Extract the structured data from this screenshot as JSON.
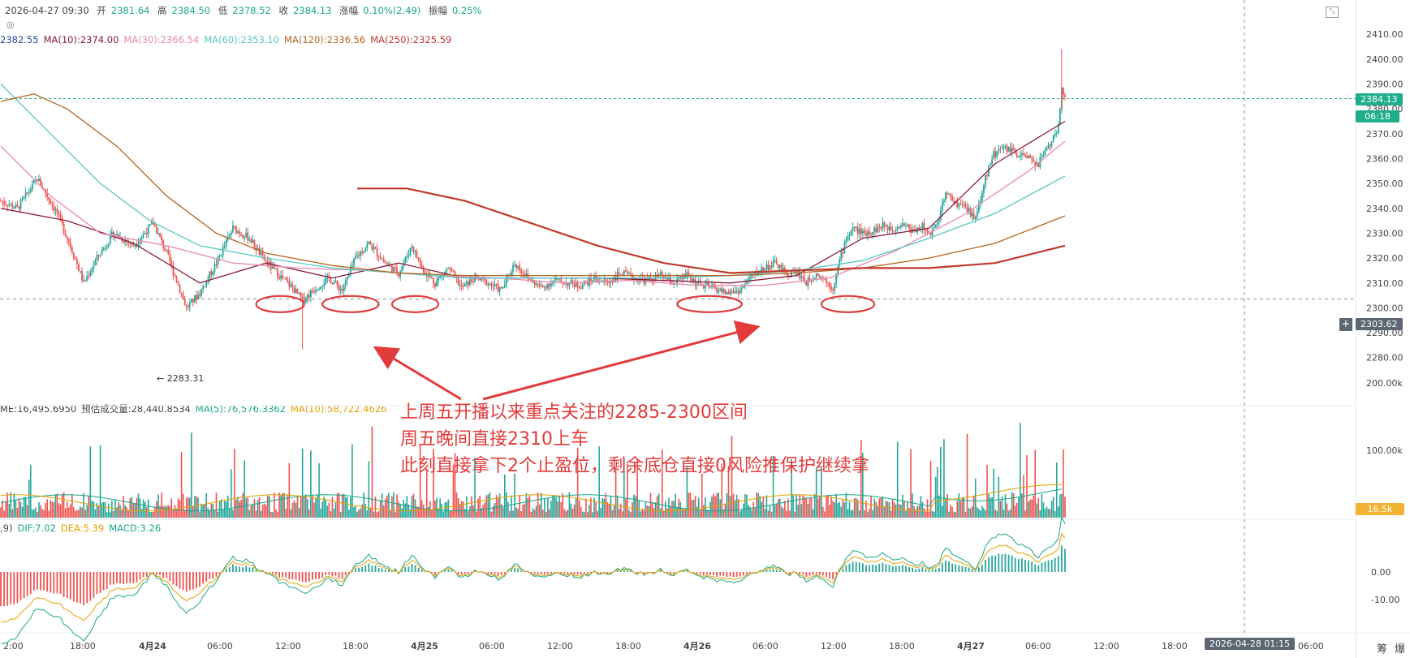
{
  "header": {
    "datetime": "2026-04-27 09:30",
    "open_label": "开",
    "open": "2381.64",
    "high_label": "高",
    "high": "2384.50",
    "low_label": "低",
    "low": "2378.52",
    "close_label": "收",
    "close": "2384.13",
    "change_label": "涨幅",
    "change": "0.10%(2.49)",
    "amp_label": "振幅",
    "amp": "0.25%"
  },
  "ma_legend": [
    {
      "text": "2382.55",
      "color": "#1f4e9c"
    },
    {
      "text": "MA(10):2374.00",
      "color": "#8b1a3a"
    },
    {
      "text": "MA(30):2366.54",
      "color": "#e88ab0"
    },
    {
      "text": "MA(60):2353.10",
      "color": "#55c7c2"
    },
    {
      "text": "MA(120):2336.56",
      "color": "#b5651d"
    },
    {
      "text": "MA(250):2325.59",
      "color": "#c0392b"
    }
  ],
  "volume_legend": [
    {
      "text": "ME:16,495.6950",
      "color": "#444444"
    },
    {
      "text": "预估成交量:28,440.8534",
      "color": "#444444"
    },
    {
      "text": "MA(5):76,576.3362",
      "color": "#17a889"
    },
    {
      "text": "MA(10):58,722.4626",
      "color": "#e6a100"
    }
  ],
  "macd_legend": [
    {
      "text": ",9)",
      "color": "#444444"
    },
    {
      "text": "DIF:7.02",
      "color": "#17a889"
    },
    {
      "text": "DEA:5.39",
      "color": "#e6a100"
    },
    {
      "text": "MACD:3.26",
      "color": "#17a889"
    }
  ],
  "price_tags": {
    "current_price": "2384.13",
    "countdown": "06:18",
    "crosshair_price": "2303.62",
    "volume_tag": "16.5k",
    "crosshair_time": "2026-04-28 01:15"
  },
  "low_marker": "← 2283.31",
  "annotation": {
    "line1": "上周五开播以来重点关注的2285-2300区间",
    "line2": "周五晚间直接2310上车",
    "line3": "此刻直接拿下2个止盈位，剩余底仓直接0风险推保护继续拿"
  },
  "bottom_right_labels": [
    "筹",
    "爆"
  ],
  "colors": {
    "up": "#26a69a",
    "down": "#ef5350",
    "annotation": "#e23b3b",
    "current_tag": "#1fae8b",
    "crosshair_tag": "#5d6673",
    "volume_tag": "#f2b233"
  },
  "chart_data": {
    "type": "candlestick",
    "price_axis": {
      "ticks": [
        "2410.00",
        "2400.00",
        "2390.00",
        "2380.00",
        "2370.00",
        "2360.00",
        "2350.00",
        "2340.00",
        "2330.00",
        "2320.00",
        "2310.00",
        "2300.00",
        "2290.00",
        "2280.00"
      ],
      "ylim": [
        2276,
        2413
      ]
    },
    "volume_axis": {
      "ticks": [
        "200.00k",
        "100.00k"
      ],
      "ylim": [
        0,
        260
      ]
    },
    "macd_axis": {
      "ticks": [
        "0.00",
        "-10.00"
      ],
      "ylim": [
        -14,
        13
      ]
    },
    "time_axis": {
      "ticks": [
        "2:00",
        "18:00",
        "4月24",
        "06:00",
        "12:00",
        "18:00",
        "4月25",
        "06:00",
        "12:00",
        "18:00",
        "4月26",
        "06:00",
        "12:00",
        "18:00",
        "4月27",
        "06:00",
        "12:00",
        "18:00",
        "06:00"
      ],
      "bold": [
        "4月24",
        "4月25",
        "4月26",
        "4月27"
      ]
    },
    "current_price": 2384.13,
    "crosshair_price": 2303.62,
    "close_path": [
      [
        0,
        2343
      ],
      [
        10,
        2340
      ],
      [
        22,
        2352
      ],
      [
        34,
        2338
      ],
      [
        42,
        2325
      ],
      [
        50,
        2310
      ],
      [
        58,
        2320
      ],
      [
        68,
        2330
      ],
      [
        80,
        2325
      ],
      [
        92,
        2334
      ],
      [
        100,
        2322
      ],
      [
        112,
        2300
      ],
      [
        120,
        2306
      ],
      [
        130,
        2318
      ],
      [
        140,
        2332
      ],
      [
        150,
        2328
      ],
      [
        158,
        2320
      ],
      [
        168,
        2313
      ],
      [
        176,
        2308
      ],
      [
        182,
        2303
      ],
      [
        190,
        2308
      ],
      [
        198,
        2312
      ],
      [
        206,
        2307
      ],
      [
        214,
        2320
      ],
      [
        222,
        2326
      ],
      [
        232,
        2318
      ],
      [
        240,
        2314
      ],
      [
        248,
        2325
      ],
      [
        254,
        2316
      ],
      [
        262,
        2310
      ],
      [
        270,
        2316
      ],
      [
        278,
        2308
      ],
      [
        286,
        2312
      ],
      [
        294,
        2310
      ],
      [
        302,
        2307
      ],
      [
        310,
        2318
      ],
      [
        318,
        2312
      ],
      [
        326,
        2308
      ],
      [
        334,
        2311
      ],
      [
        342,
        2310
      ],
      [
        350,
        2309
      ],
      [
        358,
        2312
      ],
      [
        366,
        2310
      ],
      [
        374,
        2314
      ],
      [
        382,
        2312
      ],
      [
        390,
        2311
      ],
      [
        398,
        2313
      ],
      [
        406,
        2310
      ],
      [
        414,
        2313
      ],
      [
        422,
        2309
      ],
      [
        430,
        2308
      ],
      [
        438,
        2306
      ],
      [
        446,
        2307
      ],
      [
        452,
        2312
      ],
      [
        460,
        2316
      ],
      [
        468,
        2318
      ],
      [
        474,
        2313
      ],
      [
        480,
        2315
      ],
      [
        486,
        2310
      ],
      [
        492,
        2314
      ],
      [
        496,
        2312
      ],
      [
        502,
        2308
      ],
      [
        506,
        2319
      ],
      [
        510,
        2328
      ],
      [
        514,
        2332
      ],
      [
        520,
        2330
      ],
      [
        526,
        2331
      ],
      [
        532,
        2333
      ],
      [
        538,
        2332
      ],
      [
        544,
        2334
      ],
      [
        550,
        2331
      ],
      [
        556,
        2333
      ],
      [
        560,
        2329
      ],
      [
        566,
        2336
      ],
      [
        570,
        2346
      ],
      [
        576,
        2342
      ],
      [
        582,
        2340
      ],
      [
        588,
        2336
      ],
      [
        594,
        2352
      ],
      [
        598,
        2361
      ],
      [
        604,
        2364
      ],
      [
        610,
        2363
      ],
      [
        614,
        2360
      ],
      [
        618,
        2362
      ],
      [
        622,
        2359
      ],
      [
        626,
        2358
      ],
      [
        630,
        2363
      ],
      [
        634,
        2367
      ],
      [
        638,
        2372
      ],
      [
        640,
        2390
      ],
      [
        642,
        2384
      ]
    ],
    "candle_count": 643,
    "annotated_low": 2283.31,
    "ma_series": [
      {
        "name": "MA(10)",
        "color": "#8b1a3a",
        "points": [
          [
            0,
            2340
          ],
          [
            40,
            2335
          ],
          [
            80,
            2326
          ],
          [
            120,
            2310
          ],
          [
            160,
            2318
          ],
          [
            200,
            2312
          ],
          [
            240,
            2318
          ],
          [
            280,
            2312
          ],
          [
            320,
            2312
          ],
          [
            360,
            2312
          ],
          [
            400,
            2311
          ],
          [
            440,
            2310
          ],
          [
            480,
            2313
          ],
          [
            520,
            2328
          ],
          [
            560,
            2332
          ],
          [
            600,
            2358
          ],
          [
            642,
            2375
          ]
        ]
      },
      {
        "name": "MA(30)",
        "color": "#e88ab0",
        "points": [
          [
            0,
            2365
          ],
          [
            30,
            2345
          ],
          [
            60,
            2330
          ],
          [
            100,
            2325
          ],
          [
            140,
            2318
          ],
          [
            180,
            2316
          ],
          [
            220,
            2315
          ],
          [
            260,
            2313
          ],
          [
            300,
            2312
          ],
          [
            340,
            2310
          ],
          [
            380,
            2311
          ],
          [
            420,
            2309
          ],
          [
            460,
            2309
          ],
          [
            500,
            2312
          ],
          [
            540,
            2323
          ],
          [
            580,
            2337
          ],
          [
            620,
            2355
          ],
          [
            642,
            2367
          ]
        ]
      },
      {
        "name": "MA(60)",
        "color": "#55c7c2",
        "points": [
          [
            0,
            2390
          ],
          [
            30,
            2370
          ],
          [
            60,
            2350
          ],
          [
            90,
            2335
          ],
          [
            120,
            2325
          ],
          [
            160,
            2320
          ],
          [
            200,
            2316
          ],
          [
            240,
            2314
          ],
          [
            280,
            2312
          ],
          [
            320,
            2312
          ],
          [
            360,
            2312
          ],
          [
            400,
            2312
          ],
          [
            440,
            2313
          ],
          [
            480,
            2315
          ],
          [
            520,
            2319
          ],
          [
            560,
            2328
          ],
          [
            600,
            2338
          ],
          [
            642,
            2353
          ]
        ]
      },
      {
        "name": "MA(120)",
        "color": "#b5651d",
        "points": [
          [
            0,
            2383
          ],
          [
            20,
            2386
          ],
          [
            40,
            2380
          ],
          [
            70,
            2365
          ],
          [
            100,
            2345
          ],
          [
            130,
            2330
          ],
          [
            160,
            2322
          ],
          [
            200,
            2317
          ],
          [
            240,
            2314
          ],
          [
            280,
            2313
          ],
          [
            320,
            2313
          ],
          [
            360,
            2313
          ],
          [
            400,
            2313
          ],
          [
            440,
            2313
          ],
          [
            480,
            2314
          ],
          [
            520,
            2316
          ],
          [
            560,
            2320
          ],
          [
            600,
            2326
          ],
          [
            642,
            2337
          ]
        ]
      },
      {
        "name": "MA(250)",
        "color": "#c0392b",
        "points": [
          [
            215,
            2348
          ],
          [
            245,
            2348
          ],
          [
            280,
            2343
          ],
          [
            320,
            2334
          ],
          [
            360,
            2325
          ],
          [
            400,
            2318
          ],
          [
            440,
            2314
          ],
          [
            480,
            2315
          ],
          [
            520,
            2316
          ],
          [
            560,
            2316
          ],
          [
            600,
            2318
          ],
          [
            642,
            2325
          ]
        ]
      }
    ],
    "circled_regions_x": [
      [
        156,
        181
      ],
      [
        196,
        226
      ],
      [
        238,
        262
      ],
      [
        410,
        445
      ],
      [
        497,
        525
      ]
    ]
  }
}
